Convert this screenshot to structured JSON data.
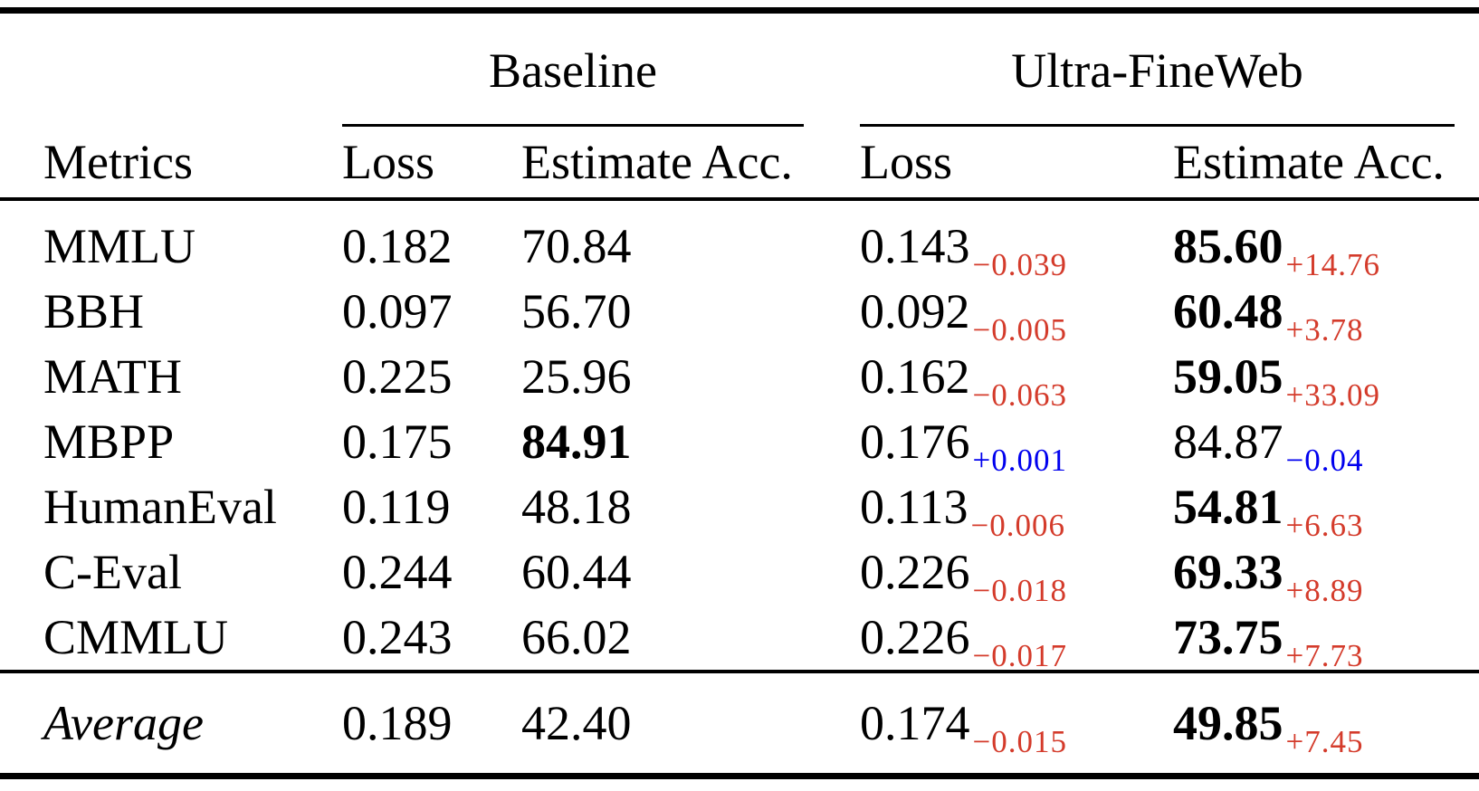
{
  "colors": {
    "red": "#d43b2b",
    "blue": "#0000ee",
    "text": "#000000",
    "background": "#ffffff"
  },
  "header": {
    "metrics_label": "Metrics",
    "groups": [
      {
        "label": "Baseline",
        "loss_label": "Loss",
        "acc_label": "Estimate Acc."
      },
      {
        "label": "Ultra-FineWeb",
        "loss_label": "Loss",
        "acc_label": "Estimate Acc."
      }
    ]
  },
  "rows": [
    {
      "metric": "MMLU",
      "b_loss": "0.182",
      "b_acc": "70.84",
      "b_acc_bold": false,
      "u_loss": "0.143",
      "u_loss_delta": "−0.039",
      "u_loss_delta_color": "red",
      "u_acc": "85.60",
      "u_acc_bold": true,
      "u_acc_delta": "+14.76",
      "u_acc_delta_color": "red"
    },
    {
      "metric": "BBH",
      "b_loss": "0.097",
      "b_acc": "56.70",
      "b_acc_bold": false,
      "u_loss": "0.092",
      "u_loss_delta": "−0.005",
      "u_loss_delta_color": "red",
      "u_acc": "60.48",
      "u_acc_bold": true,
      "u_acc_delta": "+3.78",
      "u_acc_delta_color": "red"
    },
    {
      "metric": "MATH",
      "b_loss": "0.225",
      "b_acc": "25.96",
      "b_acc_bold": false,
      "u_loss": "0.162",
      "u_loss_delta": "−0.063",
      "u_loss_delta_color": "red",
      "u_acc": "59.05",
      "u_acc_bold": true,
      "u_acc_delta": "+33.09",
      "u_acc_delta_color": "red"
    },
    {
      "metric": "MBPP",
      "b_loss": "0.175",
      "b_acc": "84.91",
      "b_acc_bold": true,
      "u_loss": "0.176",
      "u_loss_delta": "+0.001",
      "u_loss_delta_color": "blue",
      "u_acc": "84.87",
      "u_acc_bold": false,
      "u_acc_delta": "−0.04",
      "u_acc_delta_color": "blue"
    },
    {
      "metric": "HumanEval",
      "b_loss": "0.119",
      "b_acc": "48.18",
      "b_acc_bold": false,
      "u_loss": "0.113",
      "u_loss_delta": "−0.006",
      "u_loss_delta_color": "red",
      "u_acc": "54.81",
      "u_acc_bold": true,
      "u_acc_delta": "+6.63",
      "u_acc_delta_color": "red"
    },
    {
      "metric": "C-Eval",
      "b_loss": "0.244",
      "b_acc": "60.44",
      "b_acc_bold": false,
      "u_loss": "0.226",
      "u_loss_delta": "−0.018",
      "u_loss_delta_color": "red",
      "u_acc": "69.33",
      "u_acc_bold": true,
      "u_acc_delta": "+8.89",
      "u_acc_delta_color": "red"
    },
    {
      "metric": "CMMLU",
      "b_loss": "0.243",
      "b_acc": "66.02",
      "b_acc_bold": false,
      "u_loss": "0.226",
      "u_loss_delta": "−0.017",
      "u_loss_delta_color": "red",
      "u_acc": "73.75",
      "u_acc_bold": true,
      "u_acc_delta": "+7.73",
      "u_acc_delta_color": "red"
    }
  ],
  "average_row": {
    "metric": "Average",
    "b_loss": "0.189",
    "b_acc": "42.40",
    "b_acc_bold": false,
    "u_loss": "0.174",
    "u_loss_delta": "−0.015",
    "u_loss_delta_color": "red",
    "u_acc": "49.85",
    "u_acc_bold": true,
    "u_acc_delta": "+7.45",
    "u_acc_delta_color": "red"
  }
}
